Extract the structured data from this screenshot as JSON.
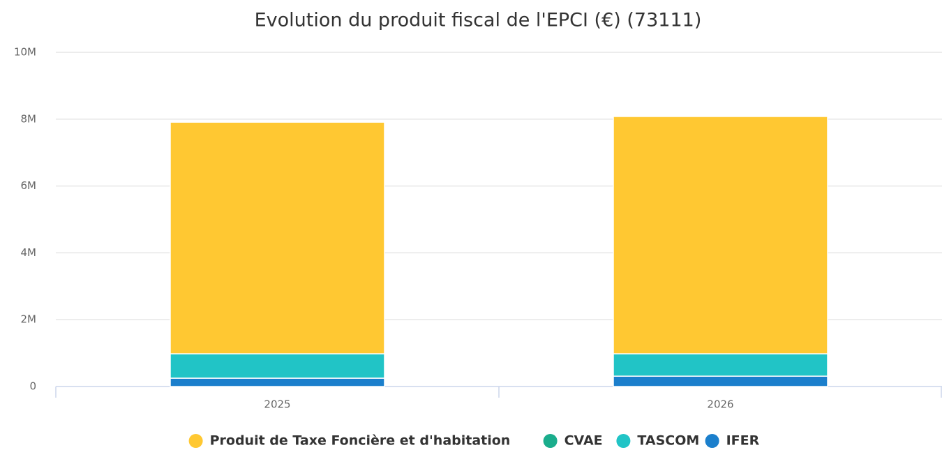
{
  "chart_data": {
    "type": "stacked_bar",
    "title": "Evolution du produit fiscal de l'EPCI (€) (73111)",
    "categories": [
      "2025",
      "2026"
    ],
    "series": [
      {
        "name": "Produit de Taxe Foncière et d'habitation",
        "color": "#ffc832",
        "values": [
          6930000,
          7100000
        ]
      },
      {
        "name": "CVAE",
        "color": "#1aad8c",
        "values": [
          0,
          0
        ]
      },
      {
        "name": "TASCOM",
        "color": "#21c4c6",
        "values": [
          730000,
          670000
        ]
      },
      {
        "name": "IFER",
        "color": "#1b7fcc",
        "values": [
          250000,
          310000
        ]
      }
    ],
    "ylim": [
      0,
      10000000
    ],
    "yticks": [
      0,
      {
        "value": 2000000,
        "label": "2M"
      },
      {
        "value": 4000000,
        "label": "4M"
      },
      {
        "value": 6000000,
        "label": "6M"
      },
      {
        "value": 8000000,
        "label": "8M"
      },
      {
        "value": 10000000,
        "label": "10M"
      }
    ],
    "grid": true,
    "legend": "bottom"
  }
}
